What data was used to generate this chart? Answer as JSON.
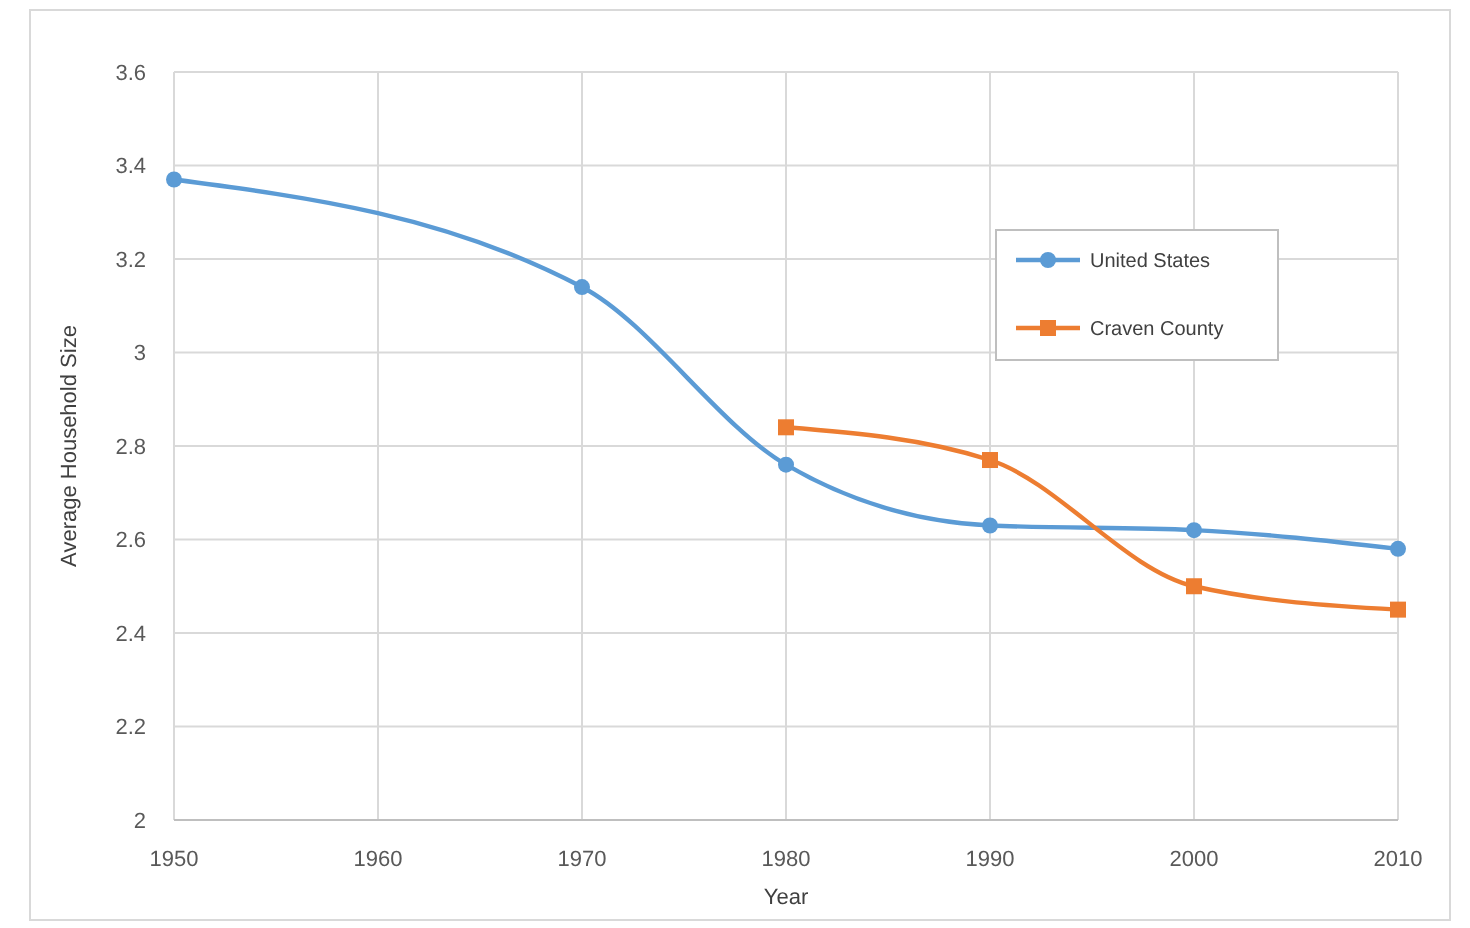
{
  "chart_data": {
    "type": "line",
    "xlabel": "Year",
    "ylabel": "Average Household Size",
    "xlim": [
      1950,
      2010
    ],
    "xticks": [
      1950,
      1960,
      1970,
      1980,
      1990,
      2000,
      2010
    ],
    "ylim": [
      2,
      3.6
    ],
    "yticks": [
      2,
      2.2,
      2.4,
      2.6,
      2.8,
      3,
      3.2,
      3.4,
      3.6
    ],
    "grid": true,
    "legend": "top right",
    "line_style": "solid",
    "series": [
      {
        "name": "United States",
        "color": "#5b9bd5",
        "marker": "circle",
        "x": [
          1950,
          1970,
          1980,
          1990,
          2000,
          2010
        ],
        "values": [
          3.37,
          3.14,
          2.76,
          2.63,
          2.62,
          2.58
        ]
      },
      {
        "name": "Craven County",
        "color": "#ed7d31",
        "marker": "square",
        "x": [
          1980,
          1990,
          2000,
          2010
        ],
        "values": [
          2.84,
          2.77,
          2.5,
          2.45
        ]
      }
    ]
  }
}
